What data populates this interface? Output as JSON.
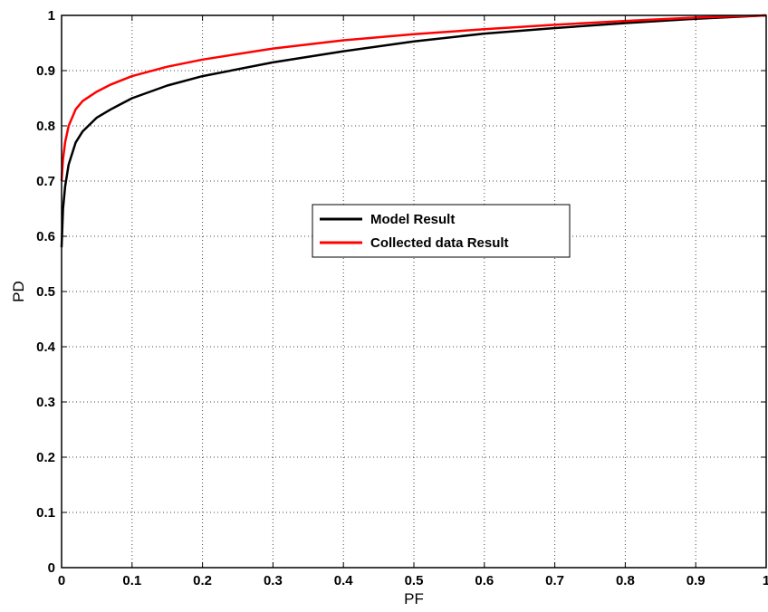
{
  "chart_data": {
    "type": "line",
    "title": "",
    "xlabel": "PF",
    "ylabel": "PD",
    "xlim": [
      0,
      1
    ],
    "ylim": [
      0,
      1
    ],
    "grid": true,
    "legend_placement": "center",
    "x_ticks": [
      "0",
      "0.1",
      "0.2",
      "0.3",
      "0.4",
      "0.5",
      "0.6",
      "0.7",
      "0.8",
      "0.9",
      "1"
    ],
    "y_ticks": [
      "0",
      "0.1",
      "0.2",
      "0.3",
      "0.4",
      "0.5",
      "0.6",
      "0.7",
      "0.8",
      "0.9",
      "1"
    ],
    "series": [
      {
        "name": "Model Result",
        "color": "#000000",
        "x": [
          0,
          0.002,
          0.005,
          0.01,
          0.02,
          0.03,
          0.05,
          0.07,
          0.1,
          0.15,
          0.2,
          0.3,
          0.4,
          0.5,
          0.6,
          0.7,
          0.8,
          0.9,
          1.0
        ],
        "y": [
          0.58,
          0.65,
          0.69,
          0.73,
          0.77,
          0.79,
          0.815,
          0.83,
          0.85,
          0.873,
          0.89,
          0.915,
          0.935,
          0.953,
          0.967,
          0.977,
          0.986,
          0.994,
          1.0
        ]
      },
      {
        "name": "Collected data Result",
        "color": "#ff0000",
        "x": [
          0,
          0.002,
          0.005,
          0.01,
          0.02,
          0.03,
          0.05,
          0.07,
          0.1,
          0.15,
          0.2,
          0.3,
          0.4,
          0.5,
          0.6,
          0.7,
          0.8,
          0.9,
          1.0
        ],
        "y": [
          0.7,
          0.74,
          0.77,
          0.8,
          0.83,
          0.845,
          0.862,
          0.875,
          0.89,
          0.907,
          0.92,
          0.94,
          0.955,
          0.966,
          0.975,
          0.983,
          0.99,
          0.996,
          1.0
        ]
      }
    ]
  }
}
